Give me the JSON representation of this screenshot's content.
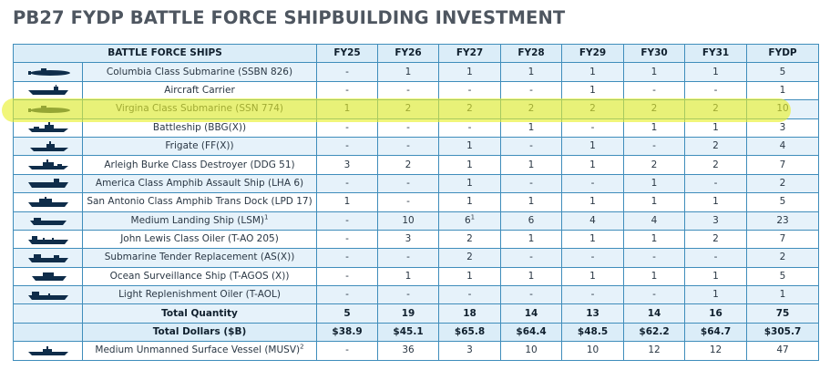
{
  "title": "PB27 FYDP BATTLE FORCE SHIPBUILDING INVESTMENT",
  "columns": [
    "BATTLE FORCE SHIPS",
    "FY25",
    "FY26",
    "FY27",
    "FY28",
    "FY29",
    "FY30",
    "FY31",
    "FYDP"
  ],
  "rows": [
    {
      "icon": "submarine-icon",
      "name": "Columbia Class Submarine (SSBN 826)",
      "values": [
        "-",
        "1",
        "1",
        "1",
        "1",
        "1",
        "1",
        "5"
      ]
    },
    {
      "icon": "carrier-icon",
      "name": "Aircraft Carrier",
      "values": [
        "-",
        "-",
        "-",
        "-",
        "1",
        "-",
        "-",
        "1"
      ]
    },
    {
      "icon": "submarine-icon",
      "name": "Virgina Class Submarine (SSN 774)",
      "values": [
        "1",
        "2",
        "2",
        "2",
        "2",
        "2",
        "2",
        "10"
      ]
    },
    {
      "icon": "battleship-icon",
      "name": "Battleship (BBG(X))",
      "values": [
        "-",
        "-",
        "-",
        "1",
        "-",
        "1",
        "1",
        "3"
      ]
    },
    {
      "icon": "frigate-icon",
      "name": "Frigate (FF(X))",
      "values": [
        "-",
        "-",
        "1",
        "-",
        "1",
        "-",
        "2",
        "4"
      ]
    },
    {
      "icon": "destroyer-icon",
      "name": "Arleigh Burke Class Destroyer (DDG 51)",
      "values": [
        "3",
        "2",
        "1",
        "1",
        "1",
        "2",
        "2",
        "7"
      ]
    },
    {
      "icon": "assault-ship-icon",
      "name": "America Class Amphib Assault Ship (LHA 6)",
      "values": [
        "-",
        "-",
        "1",
        "-",
        "-",
        "1",
        "-",
        "2"
      ]
    },
    {
      "icon": "amphib-dock-icon",
      "name": "San Antonio Class Amphib Trans Dock (LPD 17)",
      "values": [
        "1",
        "-",
        "1",
        "1",
        "1",
        "1",
        "1",
        "5"
      ]
    },
    {
      "icon": "landing-ship-icon",
      "name": "Medium Landing Ship (LSM)",
      "note": "1",
      "values": [
        "-",
        "10",
        "6",
        "6",
        "4",
        "4",
        "3",
        "23"
      ],
      "value_notes": {
        "2": "1"
      }
    },
    {
      "icon": "oiler-icon",
      "name": "John Lewis Class Oiler (T-AO 205)",
      "values": [
        "-",
        "3",
        "2",
        "1",
        "1",
        "1",
        "2",
        "7"
      ]
    },
    {
      "icon": "tender-icon",
      "name": "Submarine Tender Replacement (AS(X))",
      "values": [
        "-",
        "-",
        "2",
        "-",
        "-",
        "-",
        "-",
        "2"
      ]
    },
    {
      "icon": "surveillance-ship-icon",
      "name": "Ocean Surveillance Ship (T-AGOS (X))",
      "values": [
        "-",
        "1",
        "1",
        "1",
        "1",
        "1",
        "1",
        "5"
      ]
    },
    {
      "icon": "replenishment-oiler-icon",
      "name": "Light Replenishment Oiler (T-AOL)",
      "values": [
        "-",
        "-",
        "-",
        "-",
        "-",
        "-",
        "1",
        "1"
      ]
    }
  ],
  "total_quantity": {
    "label": "Total Quantity",
    "values": [
      "5",
      "19",
      "18",
      "14",
      "13",
      "14",
      "16",
      "75"
    ]
  },
  "total_dollars": {
    "label": "Total Dollars ($B)",
    "values": [
      "$38.9",
      "$45.1",
      "$65.8",
      "$64.4",
      "$48.5",
      "$62.2",
      "$64.7",
      "$305.7"
    ]
  },
  "musv": {
    "icon": "usv-icon",
    "name": "Medium Unmanned Surface Vessel (MUSV)",
    "note": "2",
    "values": [
      "-",
      "36",
      "3",
      "10",
      "10",
      "12",
      "12",
      "47"
    ]
  },
  "colors": {
    "border": "#3f8dbb",
    "row_tint": "#e6f2fa",
    "header": "#dbedf8",
    "highlight": "#e8f028",
    "title": "#4e5660",
    "icon": "#0f2d4a"
  }
}
